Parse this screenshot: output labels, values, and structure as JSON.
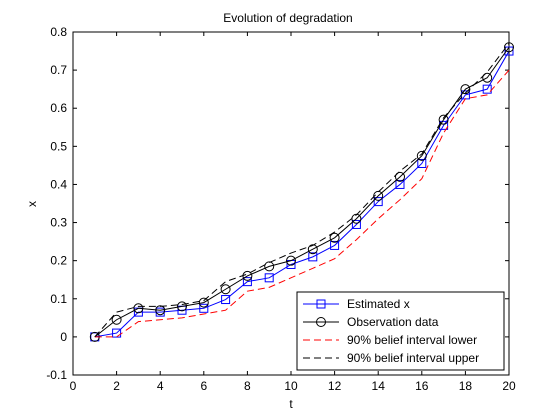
{
  "chart_data": {
    "type": "line",
    "title": "Evolution of degradation",
    "xlabel": "t",
    "ylabel": "x",
    "xlim": [
      0,
      20
    ],
    "ylim": [
      -0.1,
      0.8
    ],
    "xticks": [
      0,
      2,
      4,
      6,
      8,
      10,
      12,
      14,
      16,
      18,
      20
    ],
    "yticks": [
      -0.1,
      0,
      0.1,
      0.2,
      0.3,
      0.4,
      0.5,
      0.6,
      0.7,
      0.8
    ],
    "xtick_labels": [
      "0",
      "2",
      "4",
      "6",
      "8",
      "10",
      "12",
      "14",
      "16",
      "18",
      "20"
    ],
    "ytick_labels": [
      "-0.1",
      "0",
      "0.1",
      "0.2",
      "0.3",
      "0.4",
      "0.5",
      "0.6",
      "0.7",
      "0.8"
    ],
    "grid": false,
    "legend_position": "bottom-right",
    "x": [
      1,
      2,
      3,
      4,
      5,
      6,
      7,
      8,
      9,
      10,
      11,
      12,
      13,
      14,
      15,
      16,
      17,
      18,
      19,
      20
    ],
    "series": [
      {
        "name": "Estimated x",
        "color": "#0000ff",
        "dash": "solid",
        "marker": "square",
        "values": [
          0.0,
          0.01,
          0.065,
          0.065,
          0.07,
          0.075,
          0.098,
          0.145,
          0.155,
          0.19,
          0.21,
          0.24,
          0.295,
          0.355,
          0.4,
          0.455,
          0.555,
          0.635,
          0.65,
          0.75
        ]
      },
      {
        "name": "Observation data",
        "color": "#000000",
        "dash": "solid",
        "marker": "circle",
        "values": [
          0.0,
          0.045,
          0.075,
          0.07,
          0.08,
          0.09,
          0.125,
          0.16,
          0.185,
          0.2,
          0.23,
          0.26,
          0.31,
          0.37,
          0.42,
          0.475,
          0.57,
          0.65,
          0.68,
          0.76
        ]
      },
      {
        "name": "90% belief interval lower",
        "color": "#ff0000",
        "dash": "dashed",
        "marker": "none",
        "values": [
          0.0,
          0.0,
          0.04,
          0.045,
          0.05,
          0.06,
          0.07,
          0.12,
          0.13,
          0.155,
          0.18,
          0.205,
          0.255,
          0.31,
          0.36,
          0.415,
          0.535,
          0.625,
          0.635,
          0.7
        ]
      },
      {
        "name": "90% belief interval upper",
        "color": "#000000",
        "dash": "dashed",
        "marker": "none",
        "values": [
          0.0,
          0.065,
          0.08,
          0.08,
          0.085,
          0.095,
          0.145,
          0.165,
          0.195,
          0.22,
          0.24,
          0.275,
          0.32,
          0.38,
          0.435,
          0.48,
          0.575,
          0.64,
          0.695,
          0.77
        ]
      }
    ]
  }
}
